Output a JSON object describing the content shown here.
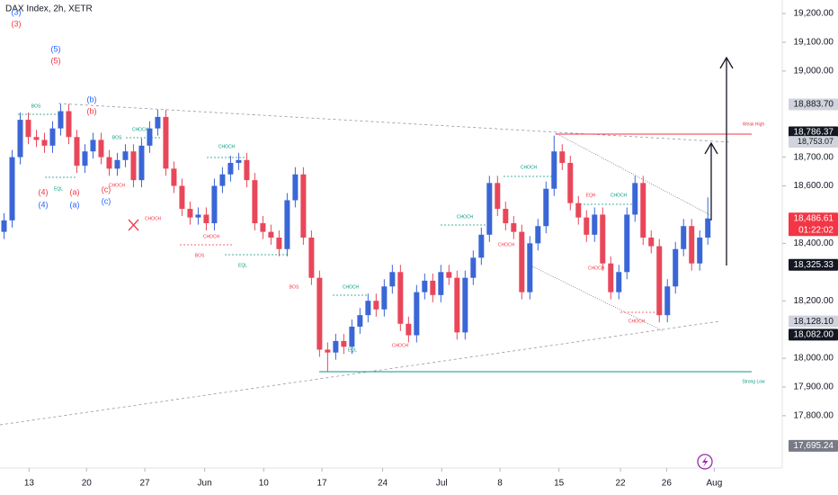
{
  "chart_data": {
    "type": "candlestick",
    "title": "DAX Index, 2h, XETR",
    "up_color": "#3a66d6",
    "down_color": "#e8475a",
    "xlim": [
      -0.5,
      96.2
    ],
    "ylim": [
      17618,
      19247
    ],
    "xticks": [
      {
        "value": 3.1,
        "label": "13"
      },
      {
        "value": 10.2,
        "label": "20"
      },
      {
        "value": 17.4,
        "label": "27"
      },
      {
        "value": 24.8,
        "label": "Jun"
      },
      {
        "value": 32.1,
        "label": "10"
      },
      {
        "value": 39.3,
        "label": "17"
      },
      {
        "value": 46.8,
        "label": "24"
      },
      {
        "value": 54.1,
        "label": "Jul"
      },
      {
        "value": 61.3,
        "label": "8"
      },
      {
        "value": 68.6,
        "label": "15"
      },
      {
        "value": 76.2,
        "label": "22"
      },
      {
        "value": 81.9,
        "label": "26"
      },
      {
        "value": 87.8,
        "label": "Aug"
      }
    ],
    "yticks": [
      {
        "value": 19200,
        "label": "19,200.00"
      },
      {
        "value": 19100,
        "label": "19,100.00"
      },
      {
        "value": 19000,
        "label": "19,000.00"
      },
      {
        "value": 18700,
        "label": "18,700.00"
      },
      {
        "value": 18600,
        "label": "18,600.00"
      },
      {
        "value": 18400,
        "label": "18,400.00"
      },
      {
        "value": 18200,
        "label": "18,200.00"
      },
      {
        "value": 18000,
        "label": "18,000.00"
      },
      {
        "value": 17900,
        "label": "17,900.00"
      },
      {
        "value": 17800,
        "label": "17,800.00"
      }
    ],
    "price_labels": [
      {
        "value": 18883.7,
        "label": "18,883.70",
        "color": "#d1d4dc",
        "text_color": "#131722"
      },
      {
        "value": 18786.37,
        "label": "18,786.37",
        "color": "#131722",
        "text_color": "#ffffff"
      },
      {
        "value": 18753.07,
        "label": "18,753.07",
        "color": "#d1d4dc",
        "text_color": "#131722"
      },
      {
        "value": 18486.61,
        "label": "18,486.61",
        "color": "#f23645",
        "text_color": "#ffffff",
        "countdown": "01:22:02"
      },
      {
        "value": 18325.33,
        "label": "18,325.33",
        "color": "#131722",
        "text_color": "#ffffff"
      },
      {
        "value": 18128.1,
        "label": "18,128.10",
        "color": "#d1d4dc",
        "text_color": "#131722"
      },
      {
        "value": 18082.0,
        "label": "18,082.00",
        "color": "#131722",
        "text_color": "#ffffff"
      },
      {
        "value": 17695.24,
        "label": "17,695.24",
        "color": "#787b86",
        "text_color": "#ffffff"
      }
    ],
    "annotations": [
      {
        "text": "(3)",
        "color": "#2962ff"
      },
      {
        "text": "(3)",
        "color": "#f23645"
      },
      {
        "text": "(5)",
        "color": "#2962ff"
      },
      {
        "text": "(5)",
        "color": "#f23645"
      },
      {
        "text": "(b)",
        "color": "#2962ff"
      },
      {
        "text": "(b)",
        "color": "#f23645"
      },
      {
        "text": "(4)",
        "color": "#f23645"
      },
      {
        "text": "(4)",
        "color": "#2962ff"
      },
      {
        "text": "(a)",
        "color": "#f23645"
      },
      {
        "text": "(a)",
        "color": "#2962ff"
      },
      {
        "text": "(c)",
        "color": "#f23645"
      },
      {
        "text": "(c)",
        "color": "#2962ff"
      },
      {
        "text": "BOS",
        "color": "#089981"
      },
      {
        "text": "EQL",
        "color": "#089981"
      },
      {
        "text": "CHOCH",
        "color": "#f23645"
      },
      {
        "text": "BOS",
        "color": "#089981"
      },
      {
        "text": "CHOCH",
        "color": "#089981"
      },
      {
        "text": "CHOCH",
        "color": "#f23645"
      },
      {
        "text": "CHOCH",
        "color": "#089981"
      },
      {
        "text": "CHOCH",
        "color": "#f23645"
      },
      {
        "text": "BOS",
        "color": "#f23645"
      },
      {
        "text": "EQL",
        "color": "#089981"
      },
      {
        "text": "BOS",
        "color": "#f23645"
      },
      {
        "text": "CHOCH",
        "color": "#089981"
      },
      {
        "text": "EQL",
        "color": "#089981"
      },
      {
        "text": "CHOCH",
        "color": "#f23645"
      },
      {
        "text": "CHOCH",
        "color": "#089981"
      },
      {
        "text": "CHOCH",
        "color": "#089981"
      },
      {
        "text": "CHOCH",
        "color": "#f23645"
      },
      {
        "text": "EQH",
        "color": "#f23645"
      },
      {
        "text": "CHOCH",
        "color": "#089981"
      },
      {
        "text": "CHOCH",
        "color": "#f23645"
      },
      {
        "text": "CHOCH",
        "color": "#f23645"
      },
      {
        "text": "Weak High",
        "color": "#f23645"
      },
      {
        "text": "Strong Low",
        "color": "#089981"
      }
    ],
    "open": [
      18440,
      18480,
      18700,
      18830,
      18770,
      18760,
      18740,
      18800,
      18860,
      18770,
      18670,
      18720,
      18760,
      18700,
      18660,
      18690,
      18720,
      18620,
      18740,
      18800,
      18840,
      18660,
      18600,
      18520,
      18490,
      18500,
      18470,
      18600,
      18640,
      18680,
      18690,
      18620,
      18470,
      18440,
      18420,
      18380,
      18550,
      18640,
      18420,
      18280,
      18030,
      18020,
      18060,
      18040,
      18110,
      18150,
      18200,
      18170,
      18250,
      18300,
      18120,
      18080,
      18230,
      18270,
      18220,
      18300,
      18280,
      18090,
      18280,
      18350,
      18430,
      18610,
      18520,
      18470,
      18440,
      18230,
      18400,
      18460,
      18590,
      18720,
      18680,
      18540,
      18490,
      18430,
      18500,
      18330,
      18230,
      18300,
      18500,
      18610,
      18420,
      18390,
      18150,
      18250,
      18380,
      18460,
      18330,
      18420
    ],
    "high": [
      18505,
      18725,
      18855,
      18855,
      18795,
      18785,
      18825,
      18885,
      18885,
      18795,
      18745,
      18785,
      18785,
      18725,
      18715,
      18745,
      18745,
      18765,
      18825,
      18865,
      18865,
      18685,
      18625,
      18545,
      18525,
      18525,
      18625,
      18665,
      18705,
      18715,
      18715,
      18645,
      18495,
      18465,
      18445,
      18575,
      18665,
      18665,
      18445,
      18305,
      18055,
      18085,
      18085,
      18135,
      18175,
      18225,
      18225,
      18275,
      18325,
      18325,
      18145,
      18255,
      18295,
      18295,
      18325,
      18325,
      18305,
      18305,
      18375,
      18455,
      18635,
      18635,
      18545,
      18495,
      18465,
      18425,
      18485,
      18615,
      18775,
      18745,
      18705,
      18565,
      18515,
      18525,
      18525,
      18355,
      18325,
      18525,
      18635,
      18635,
      18445,
      18415,
      18275,
      18405,
      18485,
      18485,
      18445,
      18560
    ],
    "low": [
      18415,
      18455,
      18675,
      18745,
      18735,
      18715,
      18715,
      18775,
      18745,
      18645,
      18645,
      18695,
      18675,
      18635,
      18635,
      18665,
      18595,
      18595,
      18715,
      18775,
      18635,
      18575,
      18495,
      18465,
      18465,
      18445,
      18445,
      18575,
      18615,
      18655,
      18595,
      18445,
      18415,
      18395,
      18355,
      18355,
      18525,
      18395,
      18255,
      18005,
      17955,
      17995,
      18015,
      18015,
      18085,
      18125,
      18145,
      18145,
      18225,
      18095,
      18055,
      18055,
      18205,
      18195,
      18195,
      18255,
      18065,
      18065,
      18255,
      18325,
      18405,
      18495,
      18445,
      18415,
      18205,
      18205,
      18375,
      18435,
      18565,
      18655,
      18515,
      18465,
      18405,
      18405,
      18305,
      18205,
      18205,
      18275,
      18475,
      18395,
      18365,
      18125,
      18125,
      18225,
      18355,
      18305,
      18305,
      18395
    ],
    "close": [
      18480,
      18700,
      18830,
      18770,
      18760,
      18740,
      18800,
      18860,
      18770,
      18670,
      18720,
      18760,
      18700,
      18660,
      18690,
      18720,
      18620,
      18740,
      18800,
      18840,
      18660,
      18600,
      18520,
      18490,
      18500,
      18470,
      18600,
      18640,
      18680,
      18690,
      18620,
      18470,
      18440,
      18420,
      18380,
      18550,
      18640,
      18420,
      18280,
      18030,
      18020,
      18060,
      18040,
      18110,
      18150,
      18200,
      18170,
      18250,
      18300,
      18120,
      18080,
      18230,
      18270,
      18220,
      18300,
      18280,
      18090,
      18280,
      18350,
      18430,
      18610,
      18520,
      18470,
      18440,
      18230,
      18400,
      18460,
      18590,
      18720,
      18680,
      18540,
      18490,
      18430,
      18500,
      18330,
      18230,
      18300,
      18500,
      18610,
      18420,
      18390,
      18150,
      18250,
      18380,
      18460,
      18330,
      18420,
      18486.61
    ]
  }
}
